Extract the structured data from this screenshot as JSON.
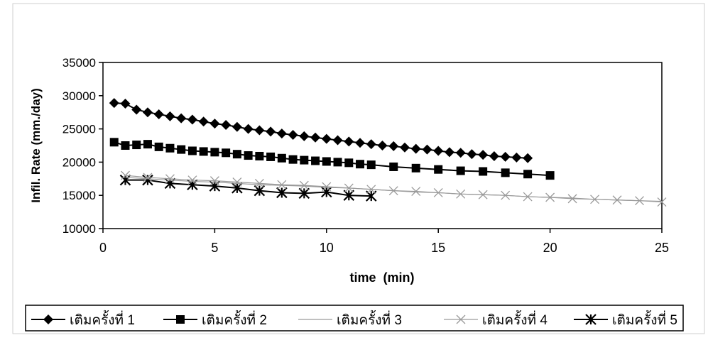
{
  "chart_data": {
    "type": "line",
    "title": "",
    "xlabel": "time  (min)",
    "ylabel": "Infil. Rate (mm./day)",
    "xlim": [
      0,
      25
    ],
    "ylim": [
      10000,
      35000
    ],
    "x_ticks": [
      "0",
      "5",
      "10",
      "15",
      "20",
      "25"
    ],
    "y_ticks": [
      "10000",
      "15000",
      "20000",
      "25000",
      "30000",
      "35000"
    ],
    "grid": false,
    "legend_position": "bottom",
    "series": [
      {
        "name": "เติมครั้งที่ 1",
        "marker": "diamond",
        "color": "#000000",
        "x": [
          0.5,
          1,
          1.5,
          2,
          2.5,
          3,
          3.5,
          4,
          4.5,
          5,
          5.5,
          6,
          6.5,
          7,
          7.5,
          8,
          8.5,
          9,
          9.5,
          10,
          10.5,
          11,
          11.5,
          12,
          12.5,
          13,
          13.5,
          14,
          14.5,
          15,
          15.5,
          16,
          16.5,
          17,
          17.5,
          18,
          18.5,
          19
        ],
        "y": [
          28900,
          28800,
          27900,
          27500,
          27200,
          26900,
          26600,
          26400,
          26100,
          25800,
          25600,
          25300,
          25000,
          24800,
          24600,
          24300,
          24100,
          23900,
          23700,
          23500,
          23300,
          23100,
          22900,
          22700,
          22500,
          22400,
          22200,
          22000,
          21900,
          21700,
          21500,
          21400,
          21200,
          21100,
          20900,
          20800,
          20700,
          20600
        ]
      },
      {
        "name": "เติมครั้งที่ 2",
        "marker": "square",
        "color": "#000000",
        "x": [
          0.5,
          1,
          1.5,
          2,
          2.5,
          3,
          3.5,
          4,
          4.5,
          5,
          5.5,
          6,
          6.5,
          7,
          7.5,
          8,
          8.5,
          9,
          9.5,
          10,
          10.5,
          11,
          11.5,
          12,
          13,
          14,
          15,
          16,
          17,
          18,
          19,
          20
        ],
        "y": [
          23000,
          22500,
          22600,
          22700,
          22300,
          22100,
          21900,
          21700,
          21600,
          21500,
          21400,
          21200,
          21000,
          20900,
          20800,
          20600,
          20400,
          20300,
          20200,
          20100,
          20000,
          19900,
          19700,
          19600,
          19300,
          19100,
          18900,
          18700,
          18600,
          18400,
          18200,
          18000
        ]
      },
      {
        "name": "เติมครั้งที่ 3",
        "marker": "none",
        "color": "#9a9a9a",
        "x": [
          1,
          2,
          3,
          4,
          5,
          6,
          7,
          8,
          9,
          10,
          11,
          12,
          13,
          14,
          15,
          16,
          17,
          18,
          19,
          20,
          21,
          22,
          23,
          24,
          25
        ],
        "y": [
          17700,
          17500,
          17300,
          17100,
          17000,
          16800,
          16600,
          16500,
          16400,
          16200,
          16100,
          15900,
          15700,
          15500,
          15400,
          15200,
          15100,
          15000,
          14800,
          14700,
          14600,
          14400,
          14300,
          14200,
          14100
        ]
      },
      {
        "name": "เติมครั้งที่ 4",
        "marker": "x",
        "color": "#9a9a9a",
        "x": [
          1,
          2,
          3,
          4,
          5,
          6,
          7,
          8,
          9,
          10,
          11,
          12,
          13,
          14,
          15,
          16,
          17,
          18,
          19,
          20,
          21,
          22,
          23,
          24,
          25
        ],
        "y": [
          18000,
          17700,
          17500,
          17300,
          17200,
          17000,
          16800,
          16600,
          16500,
          16300,
          16100,
          15900,
          15700,
          15600,
          15400,
          15200,
          15100,
          15000,
          14800,
          14700,
          14500,
          14400,
          14300,
          14200,
          14000
        ]
      },
      {
        "name": "เติมครั้งที่ 5",
        "marker": "asterisk",
        "color": "#000000",
        "x": [
          1,
          2,
          3,
          4,
          5,
          6,
          7,
          8,
          9,
          10,
          11,
          12
        ],
        "y": [
          17300,
          17300,
          16800,
          16600,
          16400,
          16100,
          15700,
          15400,
          15300,
          15500,
          15000,
          14900
        ]
      }
    ]
  }
}
